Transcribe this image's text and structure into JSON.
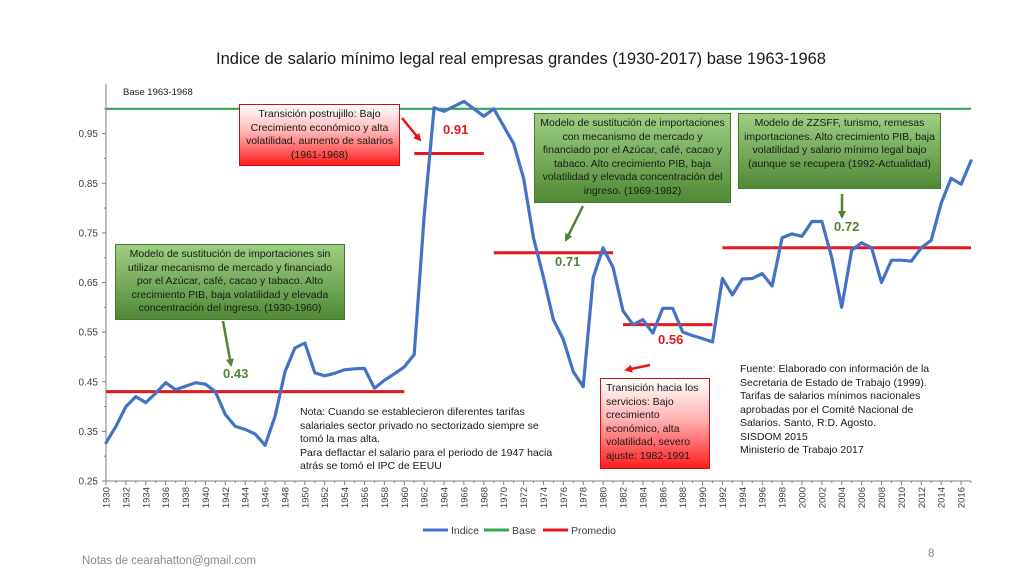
{
  "slide": {
    "footer_text": "Notas de cearahatton@gmail.com",
    "page_number": "8"
  },
  "chart_data": {
    "type": "line",
    "title": "Indice de salario mínimo legal real empresas grandes (1930-2017) base 1963-1968",
    "xlabel": "",
    "ylabel": "",
    "ylim": [
      0.25,
      1.05
    ],
    "yticks": [
      "0.25",
      "0.35",
      "0.45",
      "0.55",
      "0.65",
      "0.75",
      "0.85",
      "0.95"
    ],
    "xlim": [
      1930,
      2017
    ],
    "xticks": [
      "1930",
      "1932",
      "1934",
      "1936",
      "1938",
      "1940",
      "1942",
      "1944",
      "1946",
      "1948",
      "1950",
      "1952",
      "1954",
      "1956",
      "1958",
      "1960",
      "1962",
      "1964",
      "1966",
      "1968",
      "1970",
      "1972",
      "1974",
      "1976",
      "1978",
      "1980",
      "1982",
      "1984",
      "1986",
      "1988",
      "1990",
      "1992",
      "1994",
      "1996",
      "1998",
      "2000",
      "2002",
      "2004",
      "2006",
      "2008",
      "2010",
      "2012",
      "2014",
      "2016"
    ],
    "grid": false,
    "legend_position": "bottom",
    "legend": [
      {
        "label": "Indice",
        "color": "#4472c4"
      },
      {
        "label": "Base",
        "color": "#33a852"
      },
      {
        "label": "Promedio",
        "color": "#e8151b"
      }
    ],
    "series": [
      {
        "name": "Indice",
        "color": "#4472c4",
        "x": [
          1930,
          1931,
          1932,
          1933,
          1934,
          1935,
          1936,
          1937,
          1938,
          1939,
          1940,
          1941,
          1942,
          1943,
          1944,
          1945,
          1946,
          1947,
          1948,
          1949,
          1950,
          1951,
          1952,
          1953,
          1954,
          1955,
          1956,
          1957,
          1958,
          1959,
          1960,
          1961,
          1962,
          1963,
          1964,
          1965,
          1966,
          1967,
          1968,
          1969,
          1970,
          1971,
          1972,
          1973,
          1974,
          1975,
          1976,
          1977,
          1978,
          1979,
          1980,
          1981,
          1982,
          1983,
          1984,
          1985,
          1986,
          1987,
          1988,
          1989,
          1990,
          1991,
          1992,
          1993,
          1994,
          1995,
          1996,
          1997,
          1998,
          1999,
          2000,
          2001,
          2002,
          2003,
          2004,
          2005,
          2006,
          2007,
          2008,
          2009,
          2010,
          2011,
          2012,
          2013,
          2014,
          2015,
          2016,
          2017
        ],
        "values": [
          0.327,
          0.36,
          0.4,
          0.42,
          0.408,
          0.427,
          0.448,
          0.434,
          0.441,
          0.448,
          0.445,
          0.43,
          0.384,
          0.36,
          0.354,
          0.345,
          0.322,
          0.38,
          0.47,
          0.518,
          0.528,
          0.468,
          0.462,
          0.467,
          0.474,
          0.476,
          0.477,
          0.437,
          0.453,
          0.466,
          0.48,
          0.505,
          0.785,
          1.002,
          0.995,
          1.005,
          1.015,
          1.0,
          0.985,
          1.0,
          0.965,
          0.93,
          0.86,
          0.74,
          0.66,
          0.575,
          0.535,
          0.47,
          0.44,
          0.66,
          0.72,
          0.68,
          0.593,
          0.565,
          0.575,
          0.548,
          0.598,
          0.598,
          0.55,
          0.543,
          0.537,
          0.53,
          0.658,
          0.625,
          0.657,
          0.658,
          0.668,
          0.643,
          0.74,
          0.748,
          0.743,
          0.773,
          0.773,
          0.7,
          0.6,
          0.715,
          0.73,
          0.72,
          0.65,
          0.695,
          0.695,
          0.693,
          0.72,
          0.735,
          0.81,
          0.86,
          0.848,
          0.895
        ]
      },
      {
        "name": "Base",
        "color": "#33a852",
        "x": [
          1930,
          2017
        ],
        "values": [
          1.0,
          1.0
        ]
      },
      {
        "name": "Promedio",
        "color": "#e8151b",
        "segments": [
          {
            "x": [
              1930,
              1960
            ],
            "value": 0.43
          },
          {
            "x": [
              1961,
              1968
            ],
            "value": 0.91
          },
          {
            "x": [
              1969,
              1981
            ],
            "value": 0.71
          },
          {
            "x": [
              1982,
              1991
            ],
            "value": 0.565
          },
          {
            "x": [
              1992,
              2017
            ],
            "value": 0.72
          }
        ]
      }
    ],
    "data_labels": {
      "base": "Base 1963-1968",
      "avg_1": "0.43",
      "avg_2": "0.91",
      "avg_3": "0.71",
      "avg_4": "0.56",
      "avg_5": "0.72"
    },
    "annotations": {
      "box_1930": "Modelo de sustitución de importaciones sin utilizar mecanismo de mercado y financiado por el Azúcar, café, cacao y tabaco. Alto crecimiento PIB, baja volatilidad y elevada concentración del ingreso. (1930-1960)",
      "box_1961": "Transición postrujillo: Bajo Crecimiento económico y alta volatilidad, aumento de salarios (1961-1968)",
      "box_1969": "Modelo de sustitución de importaciones con mecanismo de mercado y financiado por el Azúcar, café, cacao y tabaco. Alto crecimiento PIB, baja volatilidad y elevada concentración del ingreso. (1969-1982)",
      "box_1992": "Modelo de ZZSFF, turismo, remesas importaciones.  Alto crecimiento PIB, baja volatilidad y salario mínimo legal bajo (aunque se recupera (1992-Actualidad)",
      "box_1982": "Transición hacia los servicios:  Bajo crecimiento económico,  alta volatilidad, severo ajuste: 1982-1991",
      "note": "Nota: Cuando se establecieron diferentes tarifas salariales sector privado no sectorizado siempre se tomó la mas alta.\nPara deflactar el salario  para el periodo de 1947 hacia atrás se tomó el IPC de EEUU",
      "source": "Fuente:  Elaborado con información de la Secretaria de Estado de Trabajo (1999). Tarifas de salarios mínimos nacionales aprobadas por el Comité Nacional de Salarios. Santo, R:D. Agosto.\nSISDOM 2015\nMinisterio de Trabajo 2017"
    }
  }
}
